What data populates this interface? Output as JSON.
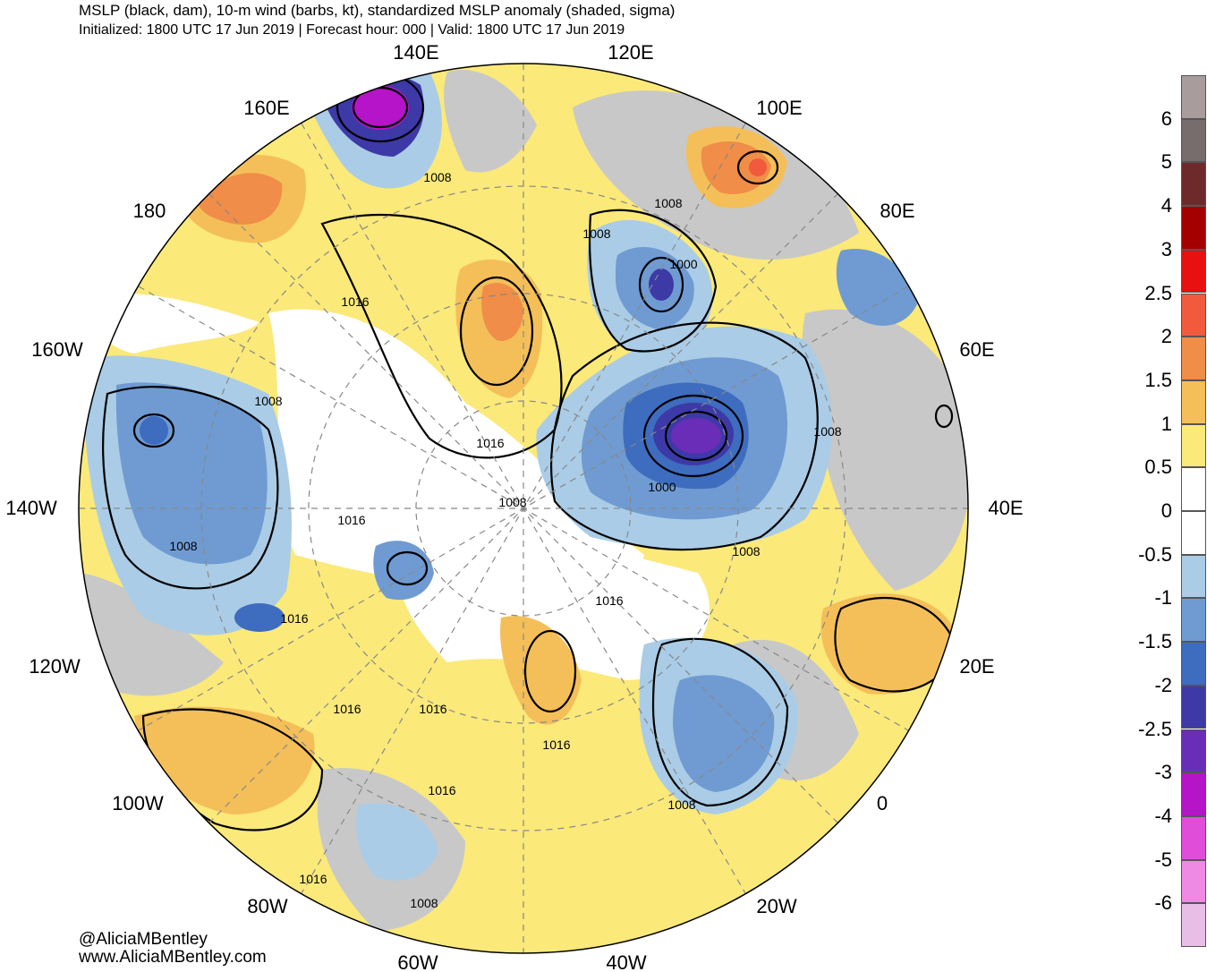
{
  "header": {
    "title_line1": "MSLP (black, dam), 10-m wind (barbs, kt), standardized MSLP anomaly (shaded, sigma)",
    "title_line2": "Initialized: 1800 UTC 17 Jun 2019 | Forecast hour: 000 | Valid: 1800 UTC 17 Jun 2019"
  },
  "credits": {
    "handle": "@AliciaMBentley",
    "website": "www.AliciaMBentley.com"
  },
  "longitude_labels": [
    "140E",
    "120E",
    "160E",
    "100E",
    "180",
    "80E",
    "160W",
    "60E",
    "140W",
    "40E",
    "120W",
    "20E",
    "100W",
    "0",
    "80W",
    "20W",
    "60W",
    "40W"
  ],
  "isobar_labels": [
    "1008",
    "1008",
    "1016",
    "1008",
    "1000",
    "1008",
    "1016",
    "1008",
    "1000",
    "1008",
    "1016",
    "1008",
    "1008",
    "1016",
    "1016",
    "1016",
    "1016",
    "1016",
    "1008",
    "1016",
    "1016",
    "1008"
  ],
  "colorbar": {
    "colors": [
      "#a89c9c",
      "#776d6c",
      "#6e2a2a",
      "#a40000",
      "#e81010",
      "#f15a3c",
      "#f08d48",
      "#f4bf58",
      "#fbe97a",
      "#ffffff",
      "#ffffff",
      "#aacce6",
      "#6f9bd2",
      "#3e6cbf",
      "#3d39a7",
      "#6a2db8",
      "#b614c8",
      "#e04dd9",
      "#ee8ae3",
      "#e8bde6"
    ],
    "labels": [
      "6",
      "5",
      "4",
      "3",
      "2.5",
      "2",
      "1.5",
      "1",
      "0.5",
      "0",
      "-0.5",
      "-1",
      "-1.5",
      "-2",
      "-2.5",
      "-3",
      "-4",
      "-5",
      "-6"
    ]
  }
}
